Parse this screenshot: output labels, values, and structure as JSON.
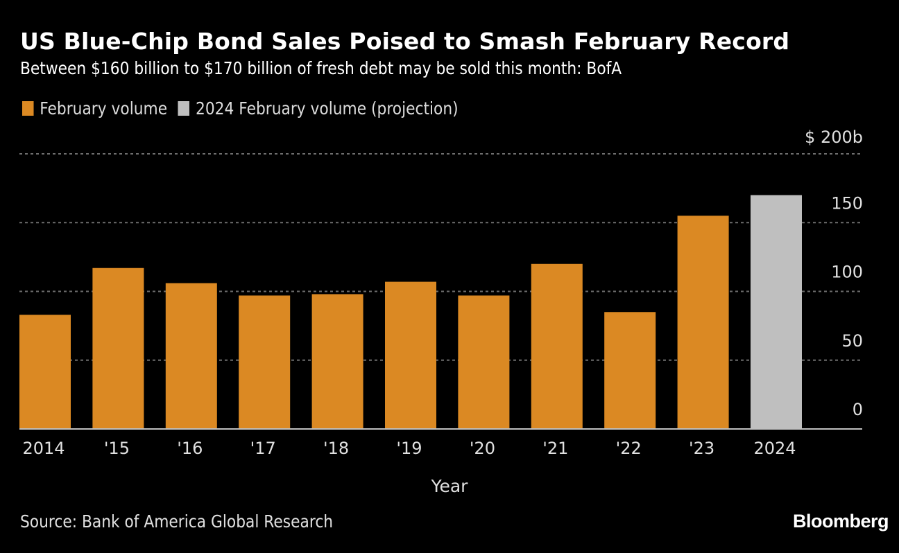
{
  "header": {
    "title": "US Blue-Chip Bond Sales Poised to Smash February Record",
    "subtitle": "Between $160 billion to $170 billion of fresh debt may be sold this month: BofA"
  },
  "legend": [
    {
      "label": "February volume",
      "color": "#DB8923"
    },
    {
      "label": "2024 February volume (projection)",
      "color": "#BFBFBF"
    }
  ],
  "footer": {
    "source": "Source: Bank of America Global Research",
    "brand": "Bloomberg"
  },
  "chart_data": {
    "type": "bar",
    "title": "US Blue-Chip Bond Sales Poised to Smash February Record",
    "subtitle": "Between $160 billion to $170 billion of fresh debt may be sold this month: BofA",
    "xlabel": "Year",
    "ylabel": "",
    "y_unit_label": "$ 200b",
    "ylim": [
      0,
      200
    ],
    "yticks": [
      0,
      50,
      100,
      150,
      200
    ],
    "ytick_labels": [
      "0",
      "50",
      "100",
      "150",
      "$ 200b"
    ],
    "y_axis_side": "right",
    "grid": true,
    "legend_position": "top-left",
    "categories": [
      "2014",
      "'15",
      "'16",
      "'17",
      "'18",
      "'19",
      "'20",
      "'21",
      "'22",
      "'23",
      "2024"
    ],
    "series": [
      {
        "name": "February volume",
        "color": "#DB8923",
        "values": [
          83,
          117,
          106,
          97,
          98,
          107,
          97,
          120,
          85,
          155,
          null
        ]
      },
      {
        "name": "2024 February volume (projection)",
        "color": "#BFBFBF",
        "values": [
          null,
          null,
          null,
          null,
          null,
          null,
          null,
          null,
          null,
          null,
          170
        ]
      }
    ]
  }
}
